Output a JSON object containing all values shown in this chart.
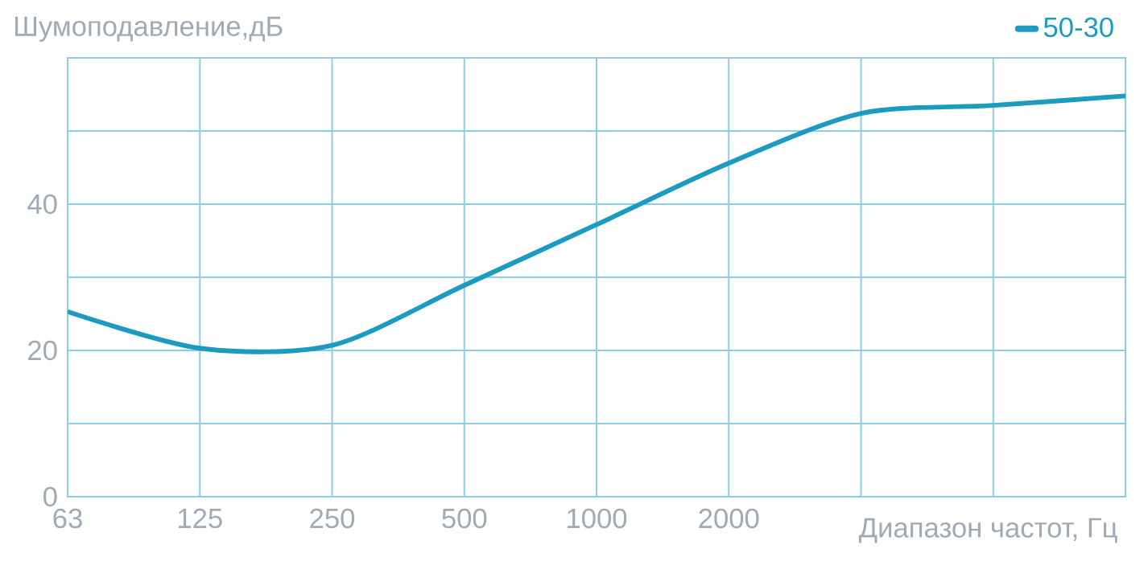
{
  "chart_data": {
    "type": "line",
    "ylabel": "Шумоподавление,дБ",
    "xlabel": "Диапазон частот, Гц",
    "categories": [
      "63",
      "125",
      "250",
      "500",
      "1000",
      "2000",
      null,
      null,
      null
    ],
    "series": [
      {
        "name": "50-30",
        "color": "#1a9bbf",
        "values": [
          25.3,
          20.3,
          20.7,
          28.9,
          37.2,
          45.6,
          52.4,
          53.5,
          54.8
        ]
      }
    ],
    "ylim": [
      0,
      60
    ],
    "yticks": [
      0,
      {
        "value": 10,
        "label": null
      },
      20,
      {
        "value": 30,
        "label": null
      },
      40,
      {
        "value": 50,
        "label": null
      },
      {
        "value": 60,
        "label": null
      }
    ],
    "grid": true,
    "legend": "top right",
    "marker": "none",
    "line_style": "solid"
  }
}
